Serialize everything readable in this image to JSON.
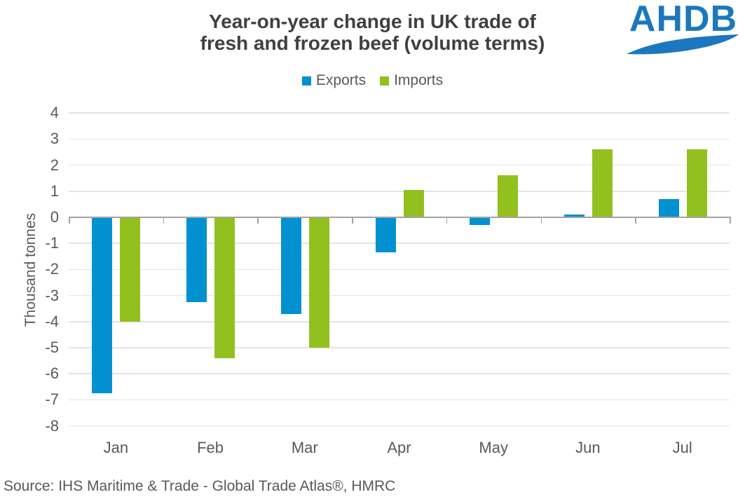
{
  "title": {
    "line1": "Year-on-year change in UK trade of",
    "line2": "fresh and frozen beef (volume terms)"
  },
  "logo": {
    "text": "AHDB"
  },
  "source": "Source: IHS Maritime & Trade - Global Trade Atlas®, HMRC",
  "colors": {
    "exports": "#0191D0",
    "imports": "#92C01F",
    "logo_blue": "#1C78BE",
    "title_text": "#404040",
    "axis_text": "#595959",
    "gridline": "#E4E4E4",
    "axis_line": "#A3A3A3"
  },
  "chart_data": {
    "type": "bar",
    "title": "Year-on-year change in UK trade of fresh and frozen beef (volume terms)",
    "categories": [
      "Jan",
      "Feb",
      "Mar",
      "Apr",
      "May",
      "Jun",
      "Jul"
    ],
    "series": [
      {
        "name": "Exports",
        "color": "#0191D0",
        "values": [
          -6.75,
          -3.25,
          -3.7,
          -1.35,
          -0.3,
          0.1,
          0.7
        ]
      },
      {
        "name": "Imports",
        "color": "#92C01F",
        "values": [
          -4.0,
          -5.4,
          -5.0,
          1.05,
          1.6,
          2.6,
          2.6
        ]
      }
    ],
    "xlabel": "",
    "ylabel": "Thousand tonnes",
    "ylim": [
      -8,
      4
    ],
    "yticks": [
      4,
      3,
      2,
      1,
      0,
      -1,
      -2,
      -3,
      -4,
      -5,
      -6,
      -7,
      -8
    ],
    "grid": true,
    "legend_position": "top"
  }
}
